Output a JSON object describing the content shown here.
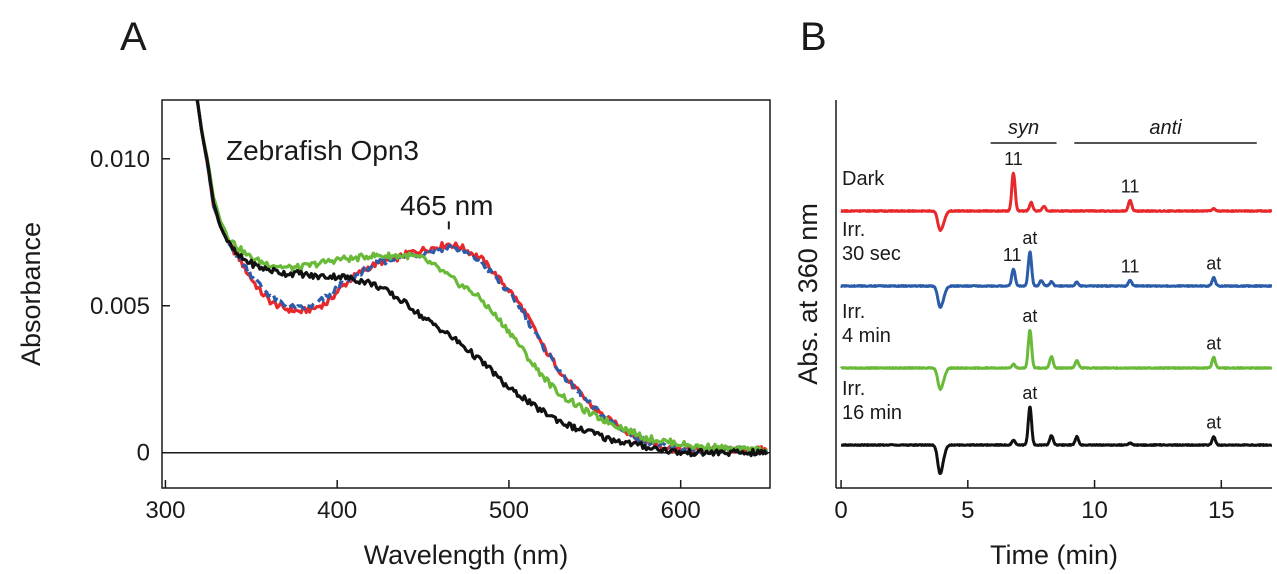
{
  "panels": {
    "a": {
      "letter": "A"
    },
    "b": {
      "letter": "B"
    }
  },
  "chart_data": [
    {
      "type": "line",
      "xlabel": "Wavelength (nm)",
      "ylabel": "Absorbance",
      "xlim": [
        298,
        652
      ],
      "ylim": [
        -0.0012,
        0.012
      ],
      "x_ticks": [
        300,
        400,
        500,
        600
      ],
      "y_ticks": [
        0,
        0.005,
        0.01
      ],
      "y_tick_labels": [
        "0",
        "0.005",
        "0.010"
      ],
      "zero_line": true,
      "annotations": {
        "title": "Zebrafish Opn3",
        "peak_label": "465 nm",
        "peak_x": 465,
        "peak_marker_y": 0.0076
      },
      "series": [
        {
          "color": "#e8282a",
          "dash": false,
          "points": [
            [
              318,
              0.0122
            ],
            [
              321,
              0.011
            ],
            [
              325,
              0.0096
            ],
            [
              328,
              0.0084
            ],
            [
              332,
              0.0077
            ],
            [
              337,
              0.0071
            ],
            [
              342,
              0.0067
            ],
            [
              348,
              0.0061
            ],
            [
              355,
              0.0055
            ],
            [
              362,
              0.0051
            ],
            [
              370,
              0.0049
            ],
            [
              378,
              0.0048
            ],
            [
              386,
              0.0049
            ],
            [
              394,
              0.0051
            ],
            [
              402,
              0.0056
            ],
            [
              410,
              0.006
            ],
            [
              418,
              0.0063
            ],
            [
              426,
              0.0065
            ],
            [
              434,
              0.0066
            ],
            [
              442,
              0.0068
            ],
            [
              450,
              0.0069
            ],
            [
              458,
              0.007
            ],
            [
              465,
              0.0071
            ],
            [
              472,
              0.007
            ],
            [
              478,
              0.0068
            ],
            [
              484,
              0.0066
            ],
            [
              490,
              0.0062
            ],
            [
              496,
              0.0058
            ],
            [
              502,
              0.0054
            ],
            [
              508,
              0.0049
            ],
            [
              514,
              0.0043
            ],
            [
              520,
              0.0036
            ],
            [
              526,
              0.0031
            ],
            [
              532,
              0.0026
            ],
            [
              540,
              0.0021
            ],
            [
              548,
              0.0016
            ],
            [
              556,
              0.0012
            ],
            [
              564,
              0.0009
            ],
            [
              572,
              0.0006
            ],
            [
              580,
              0.0004
            ],
            [
              590,
              0.0002
            ],
            [
              600,
              0.0001
            ],
            [
              610,
              0.0001
            ],
            [
              620,
              0.0001
            ],
            [
              630,
              0.0001
            ],
            [
              640,
              0.0001
            ],
            [
              650,
              0.0001
            ]
          ]
        },
        {
          "color": "#2a5caa",
          "dash": true,
          "points": [
            [
              318,
              0.0122
            ],
            [
              321,
              0.011
            ],
            [
              325,
              0.0096
            ],
            [
              328,
              0.0084
            ],
            [
              332,
              0.0077
            ],
            [
              337,
              0.0071
            ],
            [
              342,
              0.0067
            ],
            [
              348,
              0.0062
            ],
            [
              355,
              0.0057
            ],
            [
              362,
              0.0053
            ],
            [
              370,
              0.005
            ],
            [
              378,
              0.0049
            ],
            [
              386,
              0.005
            ],
            [
              394,
              0.0053
            ],
            [
              402,
              0.0057
            ],
            [
              410,
              0.006
            ],
            [
              418,
              0.0063
            ],
            [
              426,
              0.0065
            ],
            [
              434,
              0.0066
            ],
            [
              442,
              0.0067
            ],
            [
              450,
              0.0068
            ],
            [
              458,
              0.0069
            ],
            [
              465,
              0.007
            ],
            [
              472,
              0.0069
            ],
            [
              478,
              0.0067
            ],
            [
              484,
              0.0065
            ],
            [
              490,
              0.0061
            ],
            [
              496,
              0.0057
            ],
            [
              502,
              0.0053
            ],
            [
              508,
              0.0048
            ],
            [
              514,
              0.0042
            ],
            [
              520,
              0.0036
            ],
            [
              526,
              0.0031
            ],
            [
              532,
              0.0026
            ],
            [
              540,
              0.0021
            ],
            [
              548,
              0.0016
            ],
            [
              556,
              0.0012
            ],
            [
              564,
              0.0009
            ],
            [
              572,
              0.0006
            ],
            [
              580,
              0.0004
            ],
            [
              590,
              0.0002
            ],
            [
              600,
              0.0001
            ],
            [
              610,
              0.0001
            ],
            [
              620,
              0.0001
            ],
            [
              630,
              0.0001
            ],
            [
              640,
              0.0001
            ],
            [
              650,
              0.0001
            ]
          ]
        },
        {
          "color": "#6aba3a",
          "dash": false,
          "points": [
            [
              318,
              0.0122
            ],
            [
              321,
              0.011
            ],
            [
              325,
              0.0098
            ],
            [
              328,
              0.0087
            ],
            [
              332,
              0.0079
            ],
            [
              337,
              0.0073
            ],
            [
              342,
              0.007
            ],
            [
              348,
              0.0067
            ],
            [
              355,
              0.0065
            ],
            [
              362,
              0.0064
            ],
            [
              370,
              0.0063
            ],
            [
              378,
              0.0063
            ],
            [
              386,
              0.0064
            ],
            [
              394,
              0.0065
            ],
            [
              402,
              0.0066
            ],
            [
              410,
              0.0066
            ],
            [
              418,
              0.0067
            ],
            [
              426,
              0.0067
            ],
            [
              434,
              0.0067
            ],
            [
              442,
              0.0067
            ],
            [
              450,
              0.0066
            ],
            [
              458,
              0.0063
            ],
            [
              465,
              0.006
            ],
            [
              472,
              0.0057
            ],
            [
              478,
              0.0055
            ],
            [
              484,
              0.0052
            ],
            [
              490,
              0.0048
            ],
            [
              496,
              0.0044
            ],
            [
              502,
              0.004
            ],
            [
              508,
              0.0035
            ],
            [
              514,
              0.003
            ],
            [
              520,
              0.0026
            ],
            [
              526,
              0.0022
            ],
            [
              532,
              0.0019
            ],
            [
              540,
              0.0016
            ],
            [
              548,
              0.0013
            ],
            [
              556,
              0.0011
            ],
            [
              564,
              0.0009
            ],
            [
              572,
              0.0007
            ],
            [
              580,
              0.0005
            ],
            [
              590,
              0.0004
            ],
            [
              600,
              0.0003
            ],
            [
              610,
              0.0002
            ],
            [
              620,
              0.0002
            ],
            [
              630,
              0.0001
            ],
            [
              640,
              0.0001
            ],
            [
              650,
              0.0001
            ]
          ]
        },
        {
          "color": "#111111",
          "dash": false,
          "points": [
            [
              318,
              0.0122
            ],
            [
              321,
              0.011
            ],
            [
              325,
              0.0097
            ],
            [
              328,
              0.0085
            ],
            [
              332,
              0.0077
            ],
            [
              337,
              0.0071
            ],
            [
              342,
              0.0067
            ],
            [
              348,
              0.0065
            ],
            [
              355,
              0.0063
            ],
            [
              362,
              0.0062
            ],
            [
              370,
              0.0061
            ],
            [
              378,
              0.0061
            ],
            [
              386,
              0.006
            ],
            [
              394,
              0.006
            ],
            [
              402,
              0.006
            ],
            [
              410,
              0.0059
            ],
            [
              418,
              0.0058
            ],
            [
              426,
              0.0056
            ],
            [
              434,
              0.0053
            ],
            [
              442,
              0.005
            ],
            [
              450,
              0.0046
            ],
            [
              458,
              0.0043
            ],
            [
              465,
              0.004
            ],
            [
              472,
              0.0037
            ],
            [
              478,
              0.0034
            ],
            [
              484,
              0.0031
            ],
            [
              490,
              0.0028
            ],
            [
              496,
              0.0024
            ],
            [
              502,
              0.0021
            ],
            [
              508,
              0.0019
            ],
            [
              514,
              0.0016
            ],
            [
              520,
              0.0014
            ],
            [
              526,
              0.0012
            ],
            [
              532,
              0.001
            ],
            [
              540,
              0.0008
            ],
            [
              548,
              0.0007
            ],
            [
              556,
              0.0005
            ],
            [
              564,
              0.0004
            ],
            [
              572,
              0.0003
            ],
            [
              580,
              0.0002
            ],
            [
              590,
              0.0001
            ],
            [
              600,
              0.0
            ],
            [
              610,
              0.0
            ],
            [
              620,
              0.0
            ],
            [
              630,
              0.0
            ],
            [
              640,
              0.0
            ],
            [
              650,
              0.0
            ]
          ]
        }
      ]
    },
    {
      "type": "line",
      "xlabel": "Time (min)",
      "ylabel": "Abs. at 360 nm",
      "xlim": [
        -0.2,
        17
      ],
      "x_ticks": [
        0,
        5,
        10,
        15
      ],
      "brackets": [
        {
          "label": "syn",
          "from": 5.9,
          "to": 8.5
        },
        {
          "label": "anti",
          "from": 9.2,
          "to": 16.4
        }
      ],
      "series": [
        {
          "name": "Dark",
          "color": "#e8282a",
          "peaks": [
            [
              3.9,
              -0.45
            ],
            [
              4.05,
              -0.2
            ],
            [
              6.8,
              1.0
            ],
            [
              7.5,
              0.22
            ],
            [
              8.0,
              0.12
            ],
            [
              11.4,
              0.28
            ],
            [
              14.7,
              0.06
            ]
          ],
          "peak_labels": [
            {
              "text": "11",
              "x": 6.8
            },
            {
              "text": "11",
              "x": 11.4
            }
          ]
        },
        {
          "name": "Irr.\n30 sec",
          "color": "#2a5caa",
          "peaks": [
            [
              3.9,
              -0.5
            ],
            [
              4.05,
              -0.2
            ],
            [
              6.8,
              0.45
            ],
            [
              7.45,
              0.9
            ],
            [
              7.9,
              0.15
            ],
            [
              8.3,
              0.12
            ],
            [
              9.3,
              0.1
            ],
            [
              11.4,
              0.15
            ],
            [
              14.7,
              0.22
            ]
          ],
          "peak_labels": [
            {
              "text": "11",
              "x": 6.75
            },
            {
              "text": "at",
              "x": 7.45
            },
            {
              "text": "11",
              "x": 11.4
            },
            {
              "text": "at",
              "x": 14.7
            }
          ]
        },
        {
          "name": "Irr.\n4 min",
          "color": "#6aba3a",
          "peaks": [
            [
              3.9,
              -0.5
            ],
            [
              4.05,
              -0.2
            ],
            [
              6.8,
              0.1
            ],
            [
              7.45,
              1.0
            ],
            [
              8.3,
              0.3
            ],
            [
              9.3,
              0.2
            ],
            [
              14.7,
              0.28
            ]
          ],
          "peak_labels": [
            {
              "text": "at",
              "x": 7.45
            },
            {
              "text": "at",
              "x": 14.7
            }
          ]
        },
        {
          "name": "Irr.\n16 min",
          "color": "#111111",
          "peaks": [
            [
              3.9,
              -0.7
            ],
            [
              4.05,
              -0.2
            ],
            [
              6.8,
              0.12
            ],
            [
              7.45,
              1.0
            ],
            [
              8.3,
              0.25
            ],
            [
              9.3,
              0.22
            ],
            [
              11.4,
              0.05
            ],
            [
              14.7,
              0.22
            ]
          ],
          "peak_labels": [
            {
              "text": "at",
              "x": 7.45
            },
            {
              "text": "at",
              "x": 14.7
            }
          ]
        }
      ]
    }
  ]
}
